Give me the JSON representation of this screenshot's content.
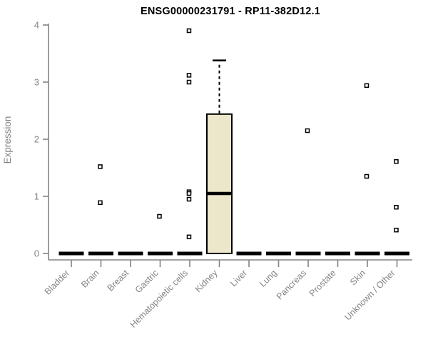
{
  "chart_data": {
    "type": "boxplot",
    "title": "ENSG00000231791 - RP11-382D12.1",
    "xlabel": "",
    "ylabel": "Expression",
    "ylim": [
      0,
      4
    ],
    "yticks": [
      0,
      1,
      2,
      3,
      4
    ],
    "grid": false,
    "legend": "none",
    "xtick_rotation_deg": 45,
    "categories": [
      "Bladder",
      "Brain",
      "Breast",
      "Gastric",
      "Hematopoietic cells",
      "Kidney",
      "Liver",
      "Lung",
      "Pancreas",
      "Prostate",
      "Skin",
      "Unknown / Other"
    ],
    "boxes": [
      {
        "category": "Bladder",
        "low": 0,
        "q1": 0,
        "median": 0,
        "q3": 0,
        "high": 0,
        "outliers": []
      },
      {
        "category": "Brain",
        "low": 0,
        "q1": 0,
        "median": 0,
        "q3": 0,
        "high": 0,
        "outliers": [
          1.52,
          0.89
        ]
      },
      {
        "category": "Breast",
        "low": 0,
        "q1": 0,
        "median": 0,
        "q3": 0,
        "high": 0,
        "outliers": []
      },
      {
        "category": "Gastric",
        "low": 0,
        "q1": 0,
        "median": 0,
        "q3": 0,
        "high": 0,
        "outliers": [
          0.65
        ]
      },
      {
        "category": "Hematopoietic cells",
        "low": 0,
        "q1": 0,
        "median": 0,
        "q3": 0,
        "high": 0,
        "outliers": [
          3.9,
          3.12,
          3.0,
          1.08,
          1.05,
          0.95,
          0.29
        ]
      },
      {
        "category": "Kidney",
        "low": 0,
        "q1": 0,
        "median": 1.05,
        "q3": 2.44,
        "high": 3.38,
        "outliers": []
      },
      {
        "category": "Liver",
        "low": 0,
        "q1": 0,
        "median": 0,
        "q3": 0,
        "high": 0,
        "outliers": []
      },
      {
        "category": "Lung",
        "low": 0,
        "q1": 0,
        "median": 0,
        "q3": 0,
        "high": 0,
        "outliers": []
      },
      {
        "category": "Pancreas",
        "low": 0,
        "q1": 0,
        "median": 0,
        "q3": 0,
        "high": 0,
        "outliers": [
          2.15
        ]
      },
      {
        "category": "Prostate",
        "low": 0,
        "q1": 0,
        "median": 0,
        "q3": 0,
        "high": 0,
        "outliers": []
      },
      {
        "category": "Skin",
        "low": 0,
        "q1": 0,
        "median": 0,
        "q3": 0,
        "high": 0,
        "outliers": [
          2.94,
          1.35
        ]
      },
      {
        "category": "Unknown / Other",
        "low": 0,
        "q1": 0,
        "median": 0,
        "q3": 0,
        "high": 0,
        "outliers": [
          1.61,
          0.81,
          0.41
        ]
      }
    ],
    "style": {
      "box_fill": "#ECE6CB",
      "box_stroke": "#000000",
      "median_color": "#000000",
      "whisker_style": "dashed",
      "outlier_marker": "open-square",
      "outlier_fill": "#ffffff",
      "outlier_stroke": "#000000",
      "axis_color": "#848484",
      "tick_label_color": "#848484",
      "title_color": "#000000",
      "background": "#ffffff"
    }
  }
}
